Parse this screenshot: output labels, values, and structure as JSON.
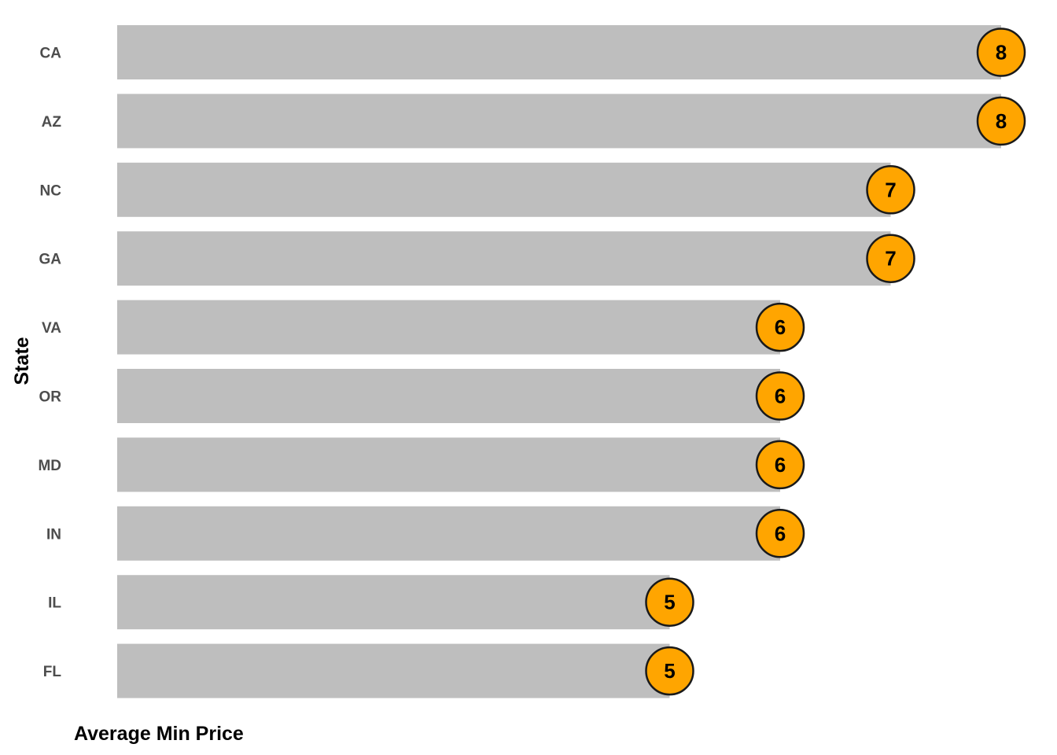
{
  "chart_data": {
    "type": "bar",
    "orientation": "horizontal",
    "categories": [
      "CA",
      "AZ",
      "NC",
      "GA",
      "VA",
      "OR",
      "MD",
      "IN",
      "IL",
      "FL"
    ],
    "values": [
      8,
      8,
      7,
      7,
      6,
      6,
      6,
      6,
      5,
      5
    ],
    "data_labels": [
      "8",
      "8",
      "7",
      "7",
      "6",
      "6",
      "6",
      "6",
      "5",
      "5"
    ],
    "xlabel": "Average Min Price",
    "ylabel": "State",
    "xlim": [
      0,
      8
    ],
    "grid": false,
    "legend": "none",
    "colors": {
      "bar": "#bebebe",
      "marker_fill": "#ffa500",
      "marker_stroke": "#1a1a1a",
      "tick_text": "#4d4d4d",
      "title_text": "#000000"
    }
  }
}
